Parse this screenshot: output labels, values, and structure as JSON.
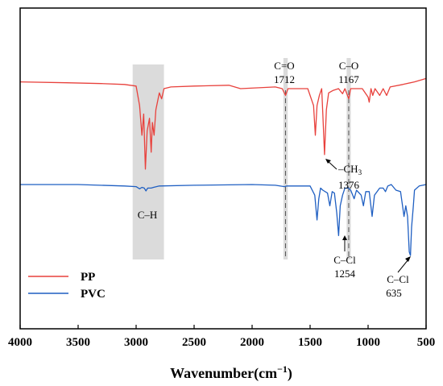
{
  "chart_data": {
    "type": "line",
    "title": "",
    "xlabel": "Wavenumber(cm",
    "xlabel_sup": "−1",
    "xlabel_close": ")",
    "ylabel": "",
    "xlim": [
      4000,
      500
    ],
    "x_reversed": true,
    "x_ticks": [
      4000,
      3500,
      3000,
      2500,
      2000,
      1500,
      1000,
      500
    ],
    "y_ticks_shown": false,
    "grid": false,
    "legend_position": "bottom-left",
    "series": [
      {
        "name": "PP",
        "color": "#e8413c",
        "points": [
          [
            4000,
            0.08
          ],
          [
            3600,
            0.07
          ],
          [
            3300,
            0.06
          ],
          [
            3100,
            0.05
          ],
          [
            3000,
            0.03
          ],
          [
            2970,
            -0.2
          ],
          [
            2950,
            -0.55
          ],
          [
            2935,
            -0.3
          ],
          [
            2920,
            -0.95
          ],
          [
            2905,
            -0.5
          ],
          [
            2885,
            -0.35
          ],
          [
            2870,
            -0.75
          ],
          [
            2860,
            -0.4
          ],
          [
            2845,
            -0.55
          ],
          [
            2830,
            -0.25
          ],
          [
            2800,
            -0.05
          ],
          [
            2780,
            -0.12
          ],
          [
            2760,
            0.0
          ],
          [
            2700,
            0.02
          ],
          [
            2500,
            0.03
          ],
          [
            2200,
            0.04
          ],
          [
            2100,
            0.0
          ],
          [
            1800,
            0.02
          ],
          [
            1740,
            0.0
          ],
          [
            1712,
            -0.08
          ],
          [
            1690,
            0.0
          ],
          [
            1600,
            0.0
          ],
          [
            1520,
            0.0
          ],
          [
            1470,
            -0.2
          ],
          [
            1455,
            -0.55
          ],
          [
            1440,
            -0.2
          ],
          [
            1420,
            -0.08
          ],
          [
            1400,
            0.0
          ],
          [
            1390,
            -0.3
          ],
          [
            1376,
            -0.78
          ],
          [
            1360,
            -0.25
          ],
          [
            1340,
            -0.05
          ],
          [
            1300,
            -0.02
          ],
          [
            1255,
            0.0
          ],
          [
            1220,
            -0.06
          ],
          [
            1200,
            0.0
          ],
          [
            1167,
            -0.12
          ],
          [
            1150,
            0.0
          ],
          [
            1100,
            0.0
          ],
          [
            1050,
            0.0
          ],
          [
            1000,
            -0.1
          ],
          [
            990,
            -0.16
          ],
          [
            975,
            0.0
          ],
          [
            960,
            -0.08
          ],
          [
            940,
            0.0
          ],
          [
            900,
            -0.08
          ],
          [
            870,
            0.0
          ],
          [
            840,
            -0.08
          ],
          [
            810,
            0.02
          ],
          [
            700,
            0.05
          ],
          [
            600,
            0.08
          ],
          [
            500,
            0.12
          ]
        ]
      },
      {
        "name": "PVC",
        "color": "#1f5fc2",
        "points": [
          [
            4000,
            0.0
          ],
          [
            3500,
            0.0
          ],
          [
            3100,
            -0.02
          ],
          [
            3000,
            -0.03
          ],
          [
            2970,
            -0.06
          ],
          [
            2950,
            -0.04
          ],
          [
            2930,
            -0.05
          ],
          [
            2915,
            -0.09
          ],
          [
            2900,
            -0.05
          ],
          [
            2870,
            -0.05
          ],
          [
            2850,
            -0.04
          ],
          [
            2800,
            -0.02
          ],
          [
            2500,
            -0.01
          ],
          [
            2000,
            0.0
          ],
          [
            1800,
            -0.01
          ],
          [
            1720,
            -0.03
          ],
          [
            1700,
            -0.02
          ],
          [
            1500,
            -0.02
          ],
          [
            1460,
            -0.15
          ],
          [
            1440,
            -0.5
          ],
          [
            1425,
            -0.2
          ],
          [
            1410,
            -0.05
          ],
          [
            1390,
            -0.08
          ],
          [
            1350,
            -0.12
          ],
          [
            1330,
            -0.3
          ],
          [
            1310,
            -0.1
          ],
          [
            1290,
            -0.12
          ],
          [
            1270,
            -0.4
          ],
          [
            1254,
            -0.72
          ],
          [
            1240,
            -0.3
          ],
          [
            1220,
            -0.15
          ],
          [
            1200,
            -0.05
          ],
          [
            1170,
            -0.05
          ],
          [
            1150,
            -0.08
          ],
          [
            1120,
            -0.2
          ],
          [
            1100,
            -0.08
          ],
          [
            1060,
            -0.15
          ],
          [
            1040,
            -0.3
          ],
          [
            1020,
            -0.1
          ],
          [
            990,
            -0.1
          ],
          [
            965,
            -0.45
          ],
          [
            945,
            -0.15
          ],
          [
            900,
            -0.05
          ],
          [
            870,
            -0.05
          ],
          [
            850,
            -0.1
          ],
          [
            830,
            -0.02
          ],
          [
            800,
            0.0
          ],
          [
            760,
            -0.08
          ],
          [
            720,
            -0.1
          ],
          [
            690,
            -0.45
          ],
          [
            675,
            -0.3
          ],
          [
            660,
            -0.45
          ],
          [
            645,
            -0.95
          ],
          [
            635,
            -1.0
          ],
          [
            625,
            -0.6
          ],
          [
            610,
            -0.3
          ],
          [
            600,
            -0.08
          ],
          [
            560,
            -0.02
          ],
          [
            500,
            0.0
          ]
        ]
      }
    ],
    "highlight_bands": [
      {
        "from": 3030,
        "to": 2760,
        "color": "#c8c8c8"
      },
      {
        "from": 1730,
        "to": 1693,
        "color": "#c8c8c8"
      },
      {
        "from": 1185,
        "to": 1149,
        "color": "#c8c8c8"
      }
    ],
    "dashed_lines": [
      1712,
      1167
    ],
    "annotations": [
      {
        "lines": [
          "C=O",
          "1712"
        ]
      },
      {
        "lines": [
          "C–O",
          "1167"
        ]
      },
      {
        "lines": [
          "C–H"
        ]
      },
      {
        "text": "–CH",
        "sub": "3",
        "value": "1376"
      },
      {
        "lines": [
          "C–Cl",
          "1254"
        ]
      },
      {
        "lines": [
          "C–Cl",
          "635"
        ]
      }
    ]
  }
}
